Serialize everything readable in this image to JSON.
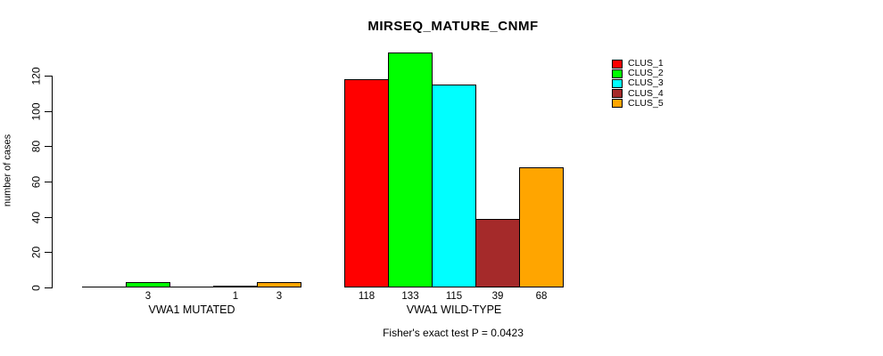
{
  "chart_data": {
    "type": "bar",
    "title": "MIRSEQ_MATURE_CNMF",
    "ylabel": "number of cases",
    "xlabel": "",
    "categories": [
      "VWA1 MUTATED",
      "VWA1 WILD-TYPE"
    ],
    "series": [
      {
        "name": "CLUS_1",
        "color": "#FF0000",
        "values": [
          0,
          118
        ]
      },
      {
        "name": "CLUS_2",
        "color": "#00FF00",
        "values": [
          3,
          133
        ]
      },
      {
        "name": "CLUS_3",
        "color": "#00FFFF",
        "values": [
          0,
          115
        ]
      },
      {
        "name": "CLUS_4",
        "color": "#A52A2A",
        "values": [
          1,
          39
        ]
      },
      {
        "name": "CLUS_5",
        "color": "#FFA500",
        "values": [
          3,
          68
        ]
      }
    ],
    "bar_labels": [
      [
        "",
        "3",
        "",
        "1",
        "3"
      ],
      [
        "118",
        "133",
        "115",
        "39",
        "68"
      ]
    ],
    "yticks": [
      0,
      20,
      40,
      60,
      80,
      100,
      120
    ],
    "ylim": [
      0,
      133
    ],
    "grid": false,
    "legend_position": "top-right",
    "axis_color": "#000000",
    "annotation": "Fisher's exact test P = 0.0423"
  }
}
